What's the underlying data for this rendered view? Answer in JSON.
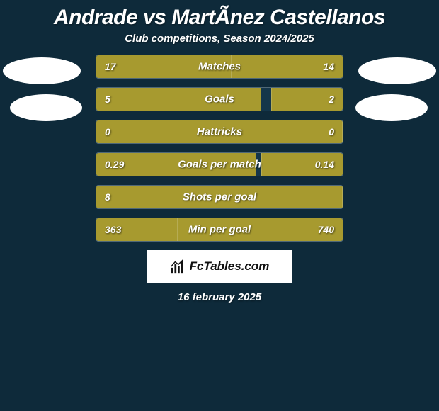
{
  "title": "Andrade vs MartÃ­nez Castellanos",
  "subtitle": "Club competitions, Season 2024/2025",
  "date": "16 february 2025",
  "logo_text": "FcTables.com",
  "colors": {
    "background": "#0e2a3a",
    "bar_left": "#a79a2f",
    "bar_right": "#a79a2f",
    "row_bg": "#14364a",
    "avatar": "#ffffff",
    "logo_bg": "#ffffff",
    "logo_text": "#111111"
  },
  "stats": [
    {
      "label": "Matches",
      "left_val": "17",
      "right_val": "14",
      "left_pct": 55,
      "right_pct": 45
    },
    {
      "label": "Goals",
      "left_val": "5",
      "right_val": "2",
      "left_pct": 67,
      "right_pct": 29
    },
    {
      "label": "Hattricks",
      "left_val": "0",
      "right_val": "0",
      "left_pct": 100,
      "right_pct": 0
    },
    {
      "label": "Goals per match",
      "left_val": "0.29",
      "right_val": "0.14",
      "left_pct": 65,
      "right_pct": 33
    },
    {
      "label": "Shots per goal",
      "left_val": "8",
      "right_val": "",
      "left_pct": 100,
      "right_pct": 0
    },
    {
      "label": "Min per goal",
      "left_val": "363",
      "right_val": "740",
      "left_pct": 33,
      "right_pct": 67
    }
  ]
}
